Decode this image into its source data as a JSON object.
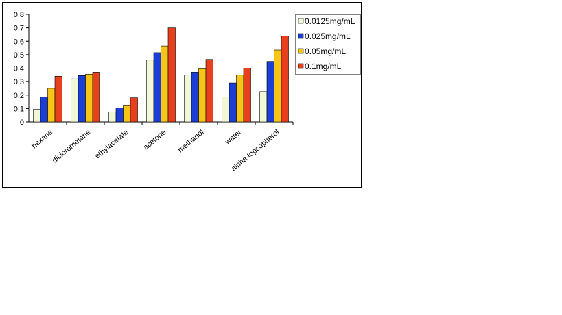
{
  "chart_data": {
    "type": "bar",
    "title": "",
    "xlabel": "",
    "ylabel": "",
    "ylim": [
      0,
      0.8
    ],
    "yticks": [
      "0",
      "0,1",
      "0,2",
      "0,3",
      "0,4",
      "0,5",
      "0,6",
      "0,7",
      "0,8"
    ],
    "grid": false,
    "legend_position": "right",
    "categories": [
      "hexane",
      "diclorometane",
      "ethylacetate",
      "acetone",
      "methanol",
      "water",
      "alpha topcopherol"
    ],
    "series": [
      {
        "name": "0.0125mg/mL",
        "color": "#f0f8d8",
        "values": [
          0.095,
          0.32,
          0.075,
          0.46,
          0.35,
          0.185,
          0.225
        ]
      },
      {
        "name": "0.025mg/mL",
        "color": "#1b3fd6",
        "values": [
          0.185,
          0.345,
          0.105,
          0.515,
          0.37,
          0.29,
          0.45
        ]
      },
      {
        "name": "0.05mg/mL",
        "color": "#f5c518",
        "values": [
          0.25,
          0.355,
          0.12,
          0.565,
          0.395,
          0.35,
          0.535
        ]
      },
      {
        "name": "0.1mg/mL",
        "color": "#e8401c",
        "values": [
          0.34,
          0.37,
          0.18,
          0.7,
          0.465,
          0.4,
          0.64
        ]
      }
    ]
  }
}
